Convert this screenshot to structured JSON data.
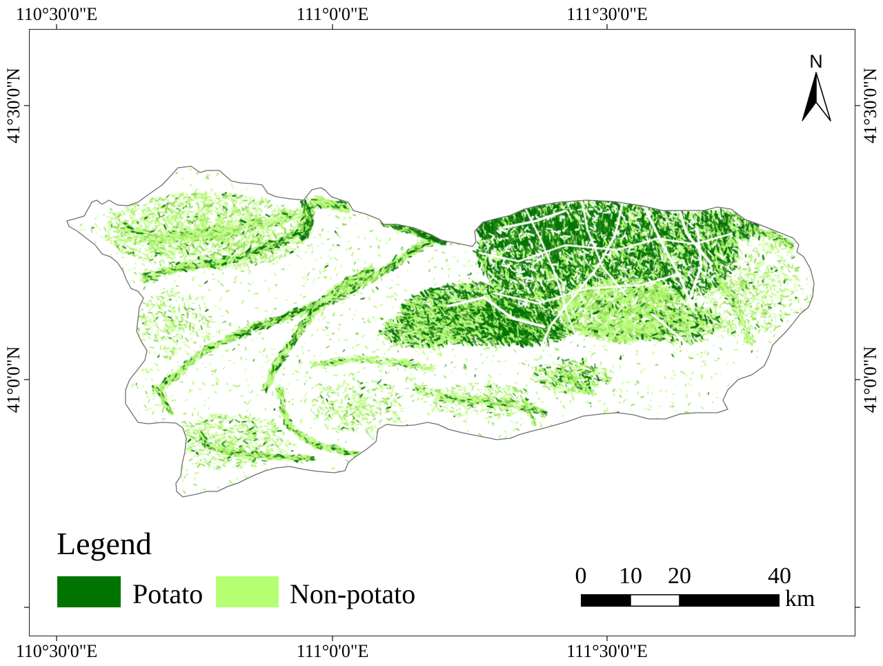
{
  "graticule": {
    "top": [
      "110°30'0\"E",
      "111°0'0\"E",
      "111°30'0\"E"
    ],
    "bottom": [
      "110°30'0\"E",
      "111°0'0\"E",
      "111°30'0\"E"
    ],
    "left": [
      "41°30'0\"N",
      "41°0'0\"N"
    ],
    "right": [
      "41°30'0\"N",
      "41°0'0\"N"
    ]
  },
  "north_arrow": {
    "label": "N"
  },
  "legend": {
    "title": "Legend",
    "items": [
      {
        "label": "Potato",
        "color": "#007300"
      },
      {
        "label": "Non-potato",
        "color": "#b4ff72"
      }
    ]
  },
  "scale_bar": {
    "labels": [
      "0",
      "10",
      "20",
      "40"
    ],
    "unit": "km"
  },
  "map": {
    "boundary_color": "#6e6e6e"
  }
}
